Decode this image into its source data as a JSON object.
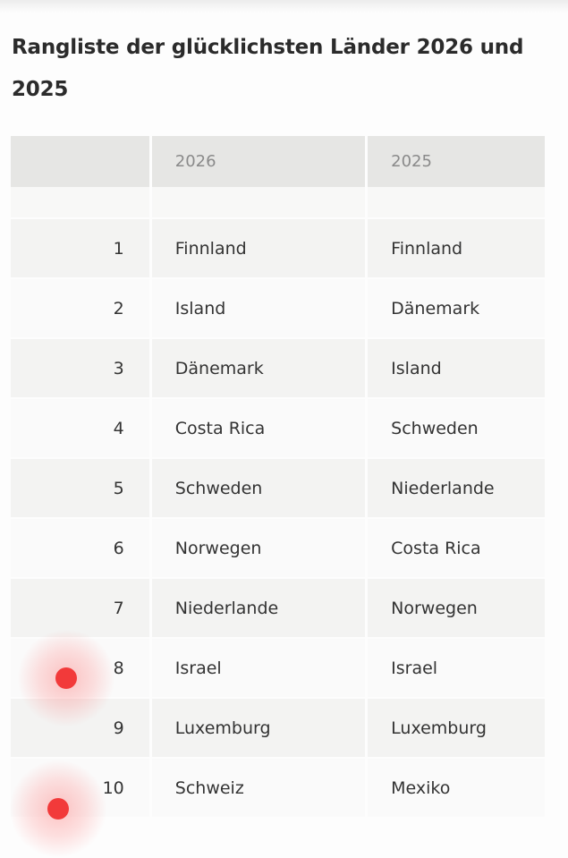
{
  "title": "Rangliste der glücklichsten Länder 2026 und 2025",
  "table": {
    "headers": [
      "",
      "2026",
      "2025"
    ],
    "rows": [
      {
        "rank": "1",
        "y2026": "Finnland",
        "y2025": "Finnland"
      },
      {
        "rank": "2",
        "y2026": "Island",
        "y2025": "Dänemark"
      },
      {
        "rank": "3",
        "y2026": "Dänemark",
        "y2025": "Island"
      },
      {
        "rank": "4",
        "y2026": "Costa Rica",
        "y2025": "Schweden"
      },
      {
        "rank": "5",
        "y2026": "Schweden",
        "y2025": "Niederlande"
      },
      {
        "rank": "6",
        "y2026": "Norwegen",
        "y2025": "Costa Rica"
      },
      {
        "rank": "7",
        "y2026": "Niederlande",
        "y2025": "Norwegen"
      },
      {
        "rank": "8",
        "y2026": "Israel",
        "y2025": "Israel"
      },
      {
        "rank": "9",
        "y2026": "Luxemburg",
        "y2025": "Luxemburg"
      },
      {
        "rank": "10",
        "y2026": "Schweiz",
        "y2025": "Mexiko"
      }
    ]
  },
  "colors": {
    "header_bg": "#e6e6e4",
    "row_alt_bg": "#f3f3f2",
    "touch_marker": "#f23a3a"
  }
}
